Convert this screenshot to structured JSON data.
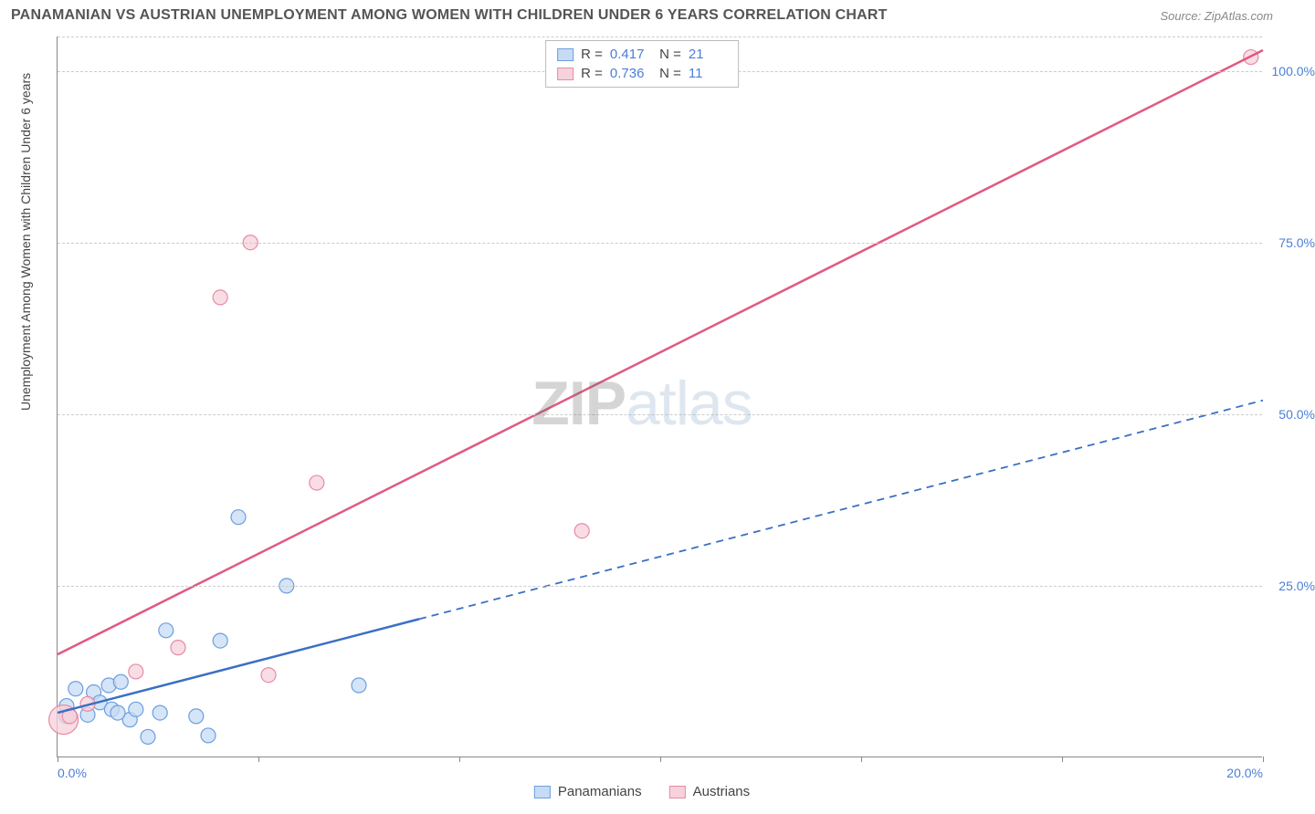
{
  "title": "PANAMANIAN VS AUSTRIAN UNEMPLOYMENT AMONG WOMEN WITH CHILDREN UNDER 6 YEARS CORRELATION CHART",
  "source": "Source: ZipAtlas.com",
  "ylabel": "Unemployment Among Women with Children Under 6 years",
  "watermark": {
    "part1": "ZIP",
    "part2": "atlas"
  },
  "chart": {
    "type": "scatter",
    "xlim": [
      0,
      20
    ],
    "ylim": [
      0,
      105
    ],
    "xticks": [
      0,
      3.33,
      6.67,
      10,
      13.33,
      16.67,
      20
    ],
    "yticks": [
      25,
      50,
      75,
      100
    ],
    "ytick_labels": [
      "25.0%",
      "50.0%",
      "75.0%",
      "100.0%"
    ],
    "xtick_labels": {
      "0": "0.0%",
      "20": "20.0%"
    },
    "grid_color": "#cccccc",
    "axis_color": "#888888",
    "label_color": "#4a7fd8",
    "background_color": "#ffffff",
    "series": [
      {
        "name": "Panamanians",
        "fill_color": "#c7dbf4",
        "stroke_color": "#6b9fe0",
        "line_color": "#3b6fc4",
        "line_solid_xmax": 6.0,
        "R": "0.417",
        "N": "21",
        "regression": {
          "x1": 0,
          "y1": 6.5,
          "x2": 20,
          "y2": 52
        },
        "points": [
          {
            "x": 0.15,
            "y": 6.0,
            "r": 8
          },
          {
            "x": 0.15,
            "y": 7.5,
            "r": 8
          },
          {
            "x": 0.3,
            "y": 10.0,
            "r": 8
          },
          {
            "x": 0.5,
            "y": 6.2,
            "r": 8
          },
          {
            "x": 0.6,
            "y": 9.5,
            "r": 8
          },
          {
            "x": 0.7,
            "y": 8.0,
            "r": 8
          },
          {
            "x": 0.85,
            "y": 10.5,
            "r": 8
          },
          {
            "x": 0.9,
            "y": 7.0,
            "r": 8
          },
          {
            "x": 1.05,
            "y": 11.0,
            "r": 8
          },
          {
            "x": 1.2,
            "y": 5.5,
            "r": 8
          },
          {
            "x": 1.3,
            "y": 7.0,
            "r": 8
          },
          {
            "x": 1.5,
            "y": 3.0,
            "r": 8
          },
          {
            "x": 1.7,
            "y": 6.5,
            "r": 8
          },
          {
            "x": 1.8,
            "y": 18.5,
            "r": 8
          },
          {
            "x": 2.3,
            "y": 6.0,
            "r": 8
          },
          {
            "x": 2.5,
            "y": 3.2,
            "r": 8
          },
          {
            "x": 2.7,
            "y": 17.0,
            "r": 8
          },
          {
            "x": 3.0,
            "y": 35.0,
            "r": 8
          },
          {
            "x": 3.8,
            "y": 25.0,
            "r": 8
          },
          {
            "x": 5.0,
            "y": 10.5,
            "r": 8
          },
          {
            "x": 1.0,
            "y": 6.5,
            "r": 8
          }
        ]
      },
      {
        "name": "Austrians",
        "fill_color": "#f7d2dc",
        "stroke_color": "#e78aa5",
        "line_color": "#e05a7f",
        "line_solid_xmax": 20.0,
        "R": "0.736",
        "N": "11",
        "regression": {
          "x1": 0,
          "y1": 15,
          "x2": 20,
          "y2": 103
        },
        "points": [
          {
            "x": 0.1,
            "y": 5.5,
            "r": 16
          },
          {
            "x": 0.2,
            "y": 6.0,
            "r": 8
          },
          {
            "x": 0.5,
            "y": 7.8,
            "r": 8
          },
          {
            "x": 1.3,
            "y": 12.5,
            "r": 8
          },
          {
            "x": 2.0,
            "y": 16.0,
            "r": 8
          },
          {
            "x": 2.7,
            "y": 67.0,
            "r": 8
          },
          {
            "x": 3.2,
            "y": 75.0,
            "r": 8
          },
          {
            "x": 3.5,
            "y": 12.0,
            "r": 8
          },
          {
            "x": 4.3,
            "y": 40.0,
            "r": 8
          },
          {
            "x": 8.7,
            "y": 33.0,
            "r": 8
          },
          {
            "x": 19.8,
            "y": 102.0,
            "r": 8
          }
        ]
      }
    ],
    "bottom_legend": [
      {
        "label": "Panamanians",
        "fill": "#c7dbf4",
        "stroke": "#6b9fe0"
      },
      {
        "label": "Austrians",
        "fill": "#f7d2dc",
        "stroke": "#e78aa5"
      }
    ]
  }
}
